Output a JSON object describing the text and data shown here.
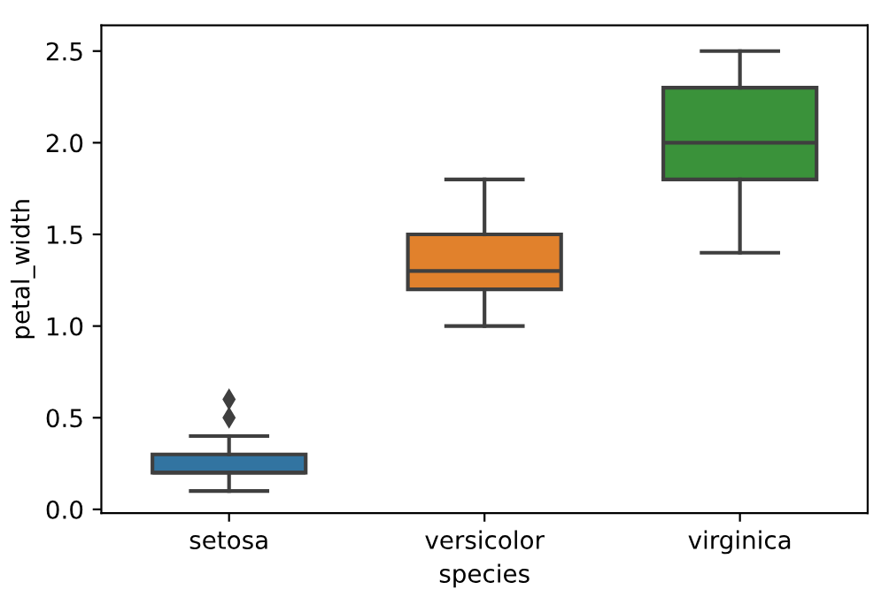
{
  "chart_data": {
    "type": "box",
    "xlabel": "species",
    "ylabel": "petal_width",
    "categories": [
      "setosa",
      "versicolor",
      "virginica"
    ],
    "colors": [
      "#3274a1",
      "#e1812c",
      "#3a923a"
    ],
    "boxes": [
      {
        "low": 0.1,
        "q1": 0.2,
        "median": 0.2,
        "q3": 0.3,
        "high": 0.4,
        "outliers": [
          0.5,
          0.6
        ]
      },
      {
        "low": 1.0,
        "q1": 1.2,
        "median": 1.3,
        "q3": 1.5,
        "high": 1.8
      },
      {
        "low": 1.4,
        "q1": 1.8,
        "median": 2.0,
        "q3": 2.3,
        "high": 2.5
      }
    ],
    "ylim": [
      -0.02,
      2.64
    ],
    "yticks": [
      {
        "value": 0,
        "label": "0.0"
      },
      {
        "value": 0.5,
        "label": "0.5"
      },
      {
        "value": 1,
        "label": "1.0"
      },
      {
        "value": 1.5,
        "label": "1.5"
      },
      {
        "value": 2,
        "label": "2.0"
      },
      {
        "value": 2.5,
        "label": "2.5"
      }
    ],
    "grid": false
  }
}
